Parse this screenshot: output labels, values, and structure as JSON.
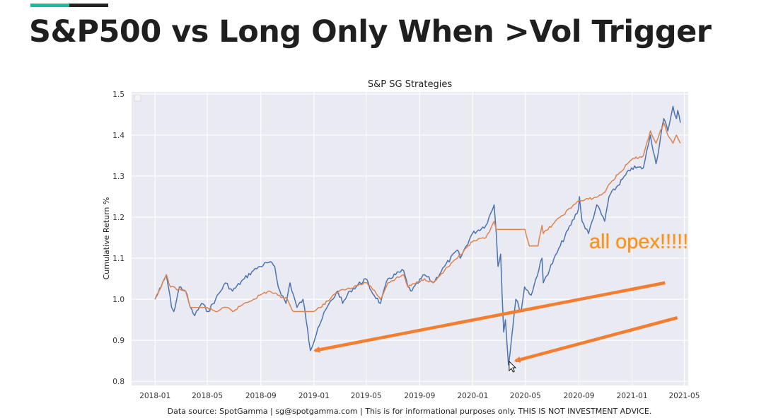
{
  "slide": {
    "title": "S&P500 vs Long Only When >Vol Trigger",
    "accent_colors": [
      "#1abc9c",
      "#222222"
    ]
  },
  "chart_data": {
    "type": "line",
    "title": "S&P SG Strategies",
    "xlabel": "",
    "ylabel": "Cumulative Return %",
    "xlim": [
      "2017-11-08",
      "2021-05-10"
    ],
    "ylim": [
      0.79,
      1.505
    ],
    "x_ticks": [
      "2018-01",
      "2018-05",
      "2018-09",
      "2019-01",
      "2019-05",
      "2019-09",
      "2020-01",
      "2020-05",
      "2020-09",
      "2021-01",
      "2021-05"
    ],
    "y_ticks": [
      "0.8",
      "0.9",
      "1.0",
      "1.1",
      "1.2",
      "1.3",
      "1.4",
      "1.5"
    ],
    "grid": true,
    "legend": "top-left (empty)",
    "background": "#eaeaf2",
    "series": [
      {
        "color": "#4c72b0",
        "points": [
          [
            "2018-01-01",
            1.0
          ],
          [
            "2018-01-15",
            1.03
          ],
          [
            "2018-01-27",
            1.06
          ],
          [
            "2018-02-08",
            0.98
          ],
          [
            "2018-02-13",
            0.97
          ],
          [
            "2018-02-26",
            1.03
          ],
          [
            "2018-03-12",
            1.02
          ],
          [
            "2018-03-23",
            0.98
          ],
          [
            "2018-04-02",
            0.96
          ],
          [
            "2018-04-18",
            0.99
          ],
          [
            "2018-05-03",
            0.97
          ],
          [
            "2018-05-20",
            1.0
          ],
          [
            "2018-06-12",
            1.04
          ],
          [
            "2018-06-28",
            1.02
          ],
          [
            "2018-07-25",
            1.05
          ],
          [
            "2018-08-15",
            1.07
          ],
          [
            "2018-08-30",
            1.08
          ],
          [
            "2018-09-20",
            1.09
          ],
          [
            "2018-10-03",
            1.08
          ],
          [
            "2018-10-11",
            1.03
          ],
          [
            "2018-10-29",
            0.99
          ],
          [
            "2018-11-07",
            1.04
          ],
          [
            "2018-11-23",
            0.98
          ],
          [
            "2018-12-07",
            1.0
          ],
          [
            "2018-12-14",
            0.95
          ],
          [
            "2018-12-24",
            0.875
          ],
          [
            "2019-01-10",
            0.93
          ],
          [
            "2019-01-31",
            0.98
          ],
          [
            "2019-02-25",
            1.02
          ],
          [
            "2019-03-08",
            0.99
          ],
          [
            "2019-03-25",
            1.02
          ],
          [
            "2019-04-30",
            1.05
          ],
          [
            "2019-05-13",
            1.02
          ],
          [
            "2019-06-03",
            0.99
          ],
          [
            "2019-06-20",
            1.05
          ],
          [
            "2019-07-26",
            1.07
          ],
          [
            "2019-08-05",
            1.03
          ],
          [
            "2019-08-14",
            1.02
          ],
          [
            "2019-09-12",
            1.06
          ],
          [
            "2019-10-02",
            1.04
          ],
          [
            "2019-10-28",
            1.08
          ],
          [
            "2019-11-27",
            1.12
          ],
          [
            "2019-12-03",
            1.1
          ],
          [
            "2019-12-31",
            1.16
          ],
          [
            "2020-01-31",
            1.18
          ],
          [
            "2020-02-19",
            1.23
          ],
          [
            "2020-02-24",
            1.16
          ],
          [
            "2020-02-28",
            1.08
          ],
          [
            "2020-03-05",
            1.11
          ],
          [
            "2020-03-12",
            0.92
          ],
          [
            "2020-03-16",
            0.95
          ],
          [
            "2020-03-23",
            0.84
          ],
          [
            "2020-04-09",
            1.0
          ],
          [
            "2020-04-21",
            0.97
          ],
          [
            "2020-04-29",
            1.03
          ],
          [
            "2020-05-14",
            1.01
          ],
          [
            "2020-06-08",
            1.1
          ],
          [
            "2020-06-11",
            1.04
          ],
          [
            "2020-07-20",
            1.13
          ],
          [
            "2020-08-31",
            1.22
          ],
          [
            "2020-09-02",
            1.25
          ],
          [
            "2020-09-08",
            1.19
          ],
          [
            "2020-09-23",
            1.16
          ],
          [
            "2020-10-12",
            1.23
          ],
          [
            "2020-10-30",
            1.19
          ],
          [
            "2020-11-09",
            1.25
          ],
          [
            "2020-12-31",
            1.32
          ],
          [
            "2021-01-27",
            1.32
          ],
          [
            "2021-02-12",
            1.4
          ],
          [
            "2021-02-25",
            1.33
          ],
          [
            "2021-03-15",
            1.44
          ],
          [
            "2021-03-24",
            1.41
          ],
          [
            "2021-04-05",
            1.47
          ],
          [
            "2021-04-13",
            1.44
          ],
          [
            "2021-04-16",
            1.46
          ],
          [
            "2021-04-22",
            1.43
          ]
        ]
      },
      {
        "color": "#dd8452",
        "points": [
          [
            "2018-01-01",
            1.0
          ],
          [
            "2018-01-15",
            1.03
          ],
          [
            "2018-01-27",
            1.06
          ],
          [
            "2018-02-05",
            1.03
          ],
          [
            "2018-03-12",
            1.02
          ],
          [
            "2018-03-23",
            0.98
          ],
          [
            "2018-05-01",
            0.98
          ],
          [
            "2018-05-20",
            0.97
          ],
          [
            "2018-06-15",
            0.98
          ],
          [
            "2018-06-28",
            0.97
          ],
          [
            "2018-07-25",
            0.99
          ],
          [
            "2018-08-15",
            1.0
          ],
          [
            "2018-08-30",
            1.01
          ],
          [
            "2018-09-20",
            1.02
          ],
          [
            "2018-10-10",
            1.01
          ],
          [
            "2018-11-01",
            1.0
          ],
          [
            "2018-11-15",
            0.97
          ],
          [
            "2018-12-31",
            0.97
          ],
          [
            "2019-01-15",
            0.98
          ],
          [
            "2019-02-28",
            1.02
          ],
          [
            "2019-04-30",
            1.04
          ],
          [
            "2019-05-13",
            1.03
          ],
          [
            "2019-06-03",
            1.0
          ],
          [
            "2019-06-20",
            1.04
          ],
          [
            "2019-07-26",
            1.06
          ],
          [
            "2019-08-05",
            1.03
          ],
          [
            "2019-09-12",
            1.05
          ],
          [
            "2019-10-02",
            1.04
          ],
          [
            "2019-10-28",
            1.07
          ],
          [
            "2019-11-27",
            1.1
          ],
          [
            "2019-12-31",
            1.14
          ],
          [
            "2020-01-31",
            1.15
          ],
          [
            "2020-02-19",
            1.19
          ],
          [
            "2020-02-24",
            1.17
          ],
          [
            "2020-04-30",
            1.17
          ],
          [
            "2020-05-10",
            1.13
          ],
          [
            "2020-05-30",
            1.13
          ],
          [
            "2020-06-08",
            1.18
          ],
          [
            "2020-06-11",
            1.16
          ],
          [
            "2020-07-20",
            1.2
          ],
          [
            "2020-08-31",
            1.24
          ],
          [
            "2020-09-08",
            1.24
          ],
          [
            "2020-10-15",
            1.25
          ],
          [
            "2020-10-30",
            1.26
          ],
          [
            "2020-11-09",
            1.28
          ],
          [
            "2020-12-31",
            1.34
          ],
          [
            "2021-01-27",
            1.35
          ],
          [
            "2021-02-12",
            1.41
          ],
          [
            "2021-02-25",
            1.38
          ],
          [
            "2021-03-15",
            1.43
          ],
          [
            "2021-03-24",
            1.4
          ],
          [
            "2021-04-05",
            1.38
          ],
          [
            "2021-04-13",
            1.4
          ],
          [
            "2021-04-22",
            1.38
          ]
        ]
      }
    ]
  },
  "annotations": {
    "callout_text": "all opex!!!!!",
    "callout_color": "#f7941d",
    "arrow_color": "#f47e2f",
    "arrows": [
      {
        "from": [
          "2021-03-18",
          1.04
        ],
        "to": [
          "2019-01-03",
          0.875
        ]
      },
      {
        "from": [
          "2021-04-15",
          0.955
        ],
        "to": [
          "2020-04-08",
          0.85
        ]
      }
    ]
  },
  "cursor_icon": "mouse-pointer-icon",
  "footnote": "Data source: SpotGamma | sg@spotgamma.com | This is for informational purposes only. THIS IS NOT INVESTMENT ADVICE."
}
